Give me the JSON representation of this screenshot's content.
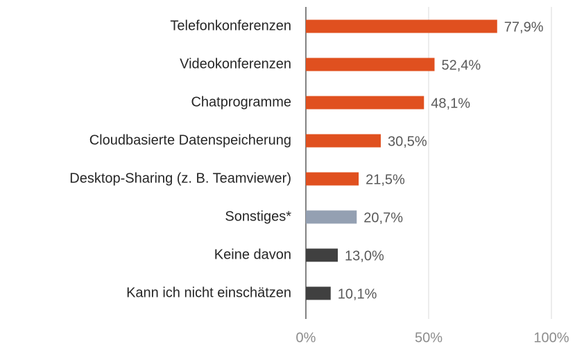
{
  "chart_data": {
    "type": "bar",
    "orientation": "horizontal",
    "categories": [
      "Telefonkonferenzen",
      "Videokonferenzen",
      "Chatprogramme",
      "Cloudbasierte Datenspeicherung",
      "Desktop-Sharing (z. B. Teamviewer)",
      "Sonstiges*",
      "Keine davon",
      "Kann ich nicht einschätzen"
    ],
    "values": [
      77.9,
      52.4,
      48.1,
      30.5,
      21.5,
      20.7,
      13.0,
      10.1
    ],
    "value_labels": [
      "77,9%",
      "52,4%",
      "48,1%",
      "30,5%",
      "21,5%",
      "20,7%",
      "13,0%",
      "10,1%"
    ],
    "colors": [
      "#e0501f",
      "#e0501f",
      "#e0501f",
      "#e0501f",
      "#e0501f",
      "#94a0b2",
      "#404040",
      "#404040"
    ],
    "xlim": [
      0,
      100
    ],
    "xticks": [
      {
        "value": 0,
        "label": "0%"
      },
      {
        "value": 50,
        "label": "50%"
      },
      {
        "value": 100,
        "label": "100%"
      }
    ],
    "grid": true
  }
}
